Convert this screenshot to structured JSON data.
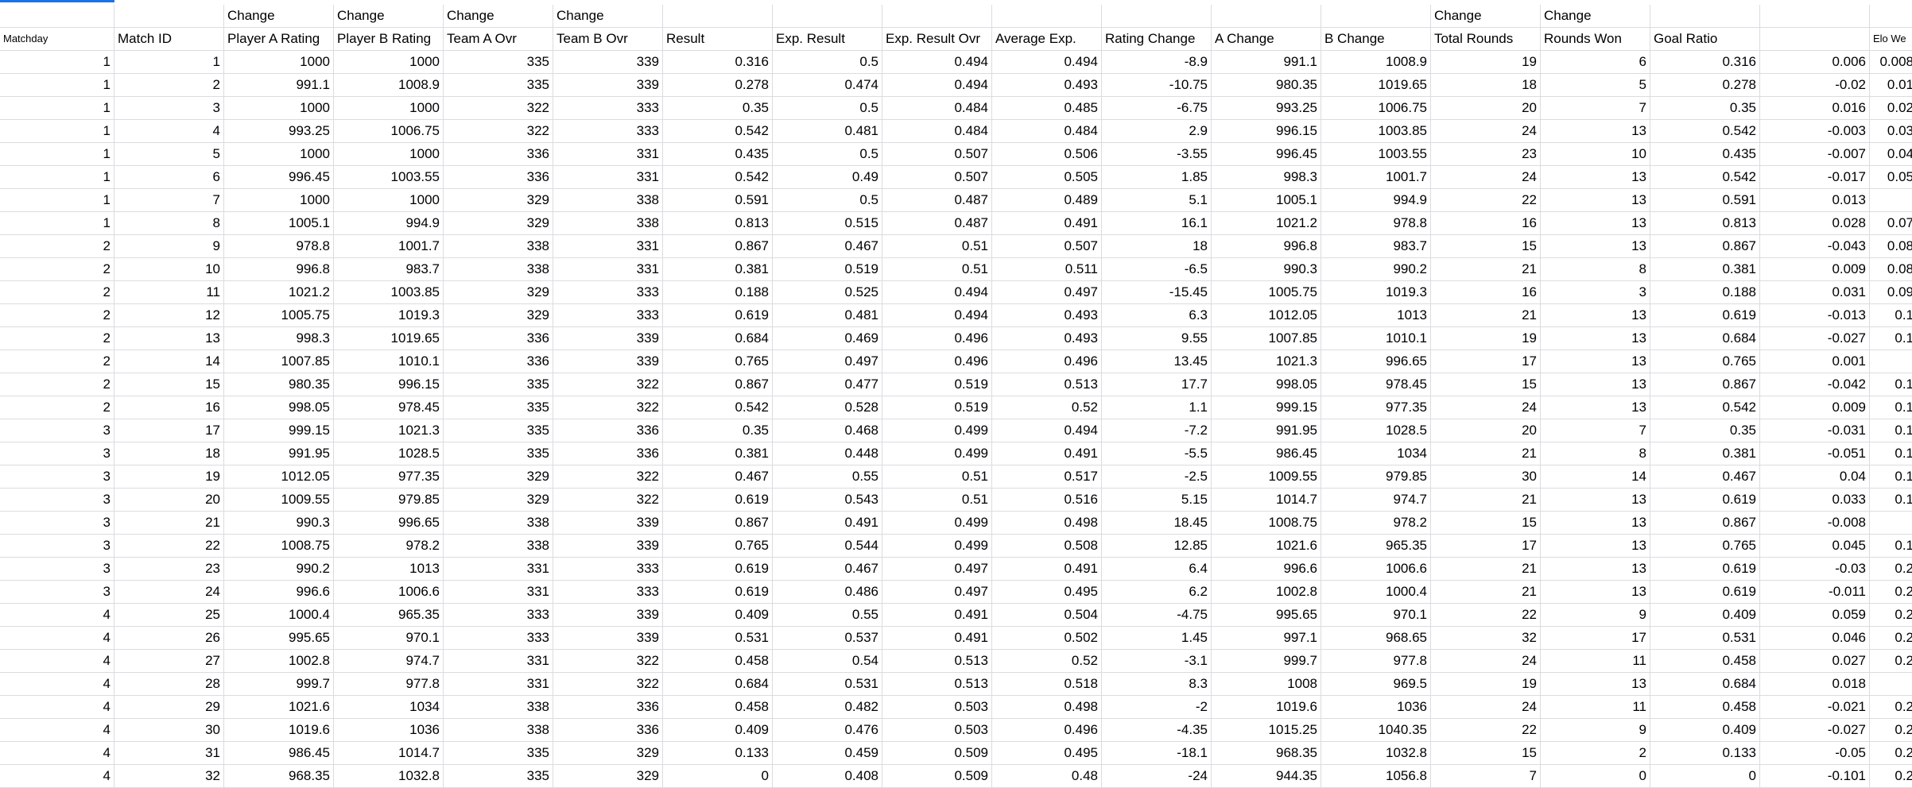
{
  "sheet": {
    "header_row1": [
      "",
      "",
      "Change",
      "Change",
      "Change",
      "Change",
      "",
      "",
      "",
      "",
      "",
      "",
      "",
      "Change",
      "Change",
      "",
      "",
      ""
    ],
    "header_row2": [
      "Matchday",
      "Match ID",
      "Player A Rating",
      "Player B Rating",
      "Team A Ovr",
      "Team B Ovr",
      "Result",
      "Exp. Result",
      "Exp. Result Ovr",
      "Average Exp.",
      "Rating Change",
      "A Change",
      "B Change",
      "Total Rounds",
      "Rounds Won",
      "Goal Ratio",
      "",
      "Elo We"
    ],
    "rows": [
      [
        "1",
        "1",
        "1000",
        "1000",
        "335",
        "339",
        "0.316",
        "0.5",
        "0.494",
        "0.494",
        "-8.9",
        "991.1",
        "1008.9",
        "19",
        "6",
        "0.316",
        "0.006",
        "0.008"
      ],
      [
        "1",
        "2",
        "991.1",
        "1008.9",
        "335",
        "339",
        "0.278",
        "0.474",
        "0.494",
        "0.493",
        "-10.75",
        "980.35",
        "1019.65",
        "18",
        "5",
        "0.278",
        "-0.02",
        "0.01"
      ],
      [
        "1",
        "3",
        "1000",
        "1000",
        "322",
        "333",
        "0.35",
        "0.5",
        "0.484",
        "0.485",
        "-6.75",
        "993.25",
        "1006.75",
        "20",
        "7",
        "0.35",
        "0.016",
        "0.02"
      ],
      [
        "1",
        "4",
        "993.25",
        "1006.75",
        "322",
        "333",
        "0.542",
        "0.481",
        "0.484",
        "0.484",
        "2.9",
        "996.15",
        "1003.85",
        "24",
        "13",
        "0.542",
        "-0.003",
        "0.03"
      ],
      [
        "1",
        "5",
        "1000",
        "1000",
        "336",
        "331",
        "0.435",
        "0.5",
        "0.507",
        "0.506",
        "-3.55",
        "996.45",
        "1003.55",
        "23",
        "10",
        "0.435",
        "-0.007",
        "0.04"
      ],
      [
        "1",
        "6",
        "996.45",
        "1003.55",
        "336",
        "331",
        "0.542",
        "0.49",
        "0.507",
        "0.505",
        "1.85",
        "998.3",
        "1001.7",
        "24",
        "13",
        "0.542",
        "-0.017",
        "0.05"
      ],
      [
        "1",
        "7",
        "1000",
        "1000",
        "329",
        "338",
        "0.591",
        "0.5",
        "0.487",
        "0.489",
        "5.1",
        "1005.1",
        "994.9",
        "22",
        "13",
        "0.591",
        "0.013",
        ""
      ],
      [
        "1",
        "8",
        "1005.1",
        "994.9",
        "329",
        "338",
        "0.813",
        "0.515",
        "0.487",
        "0.491",
        "16.1",
        "1021.2",
        "978.8",
        "16",
        "13",
        "0.813",
        "0.028",
        "0.07"
      ],
      [
        "2",
        "9",
        "978.8",
        "1001.7",
        "338",
        "331",
        "0.867",
        "0.467",
        "0.51",
        "0.507",
        "18",
        "996.8",
        "983.7",
        "15",
        "13",
        "0.867",
        "-0.043",
        "0.08"
      ],
      [
        "2",
        "10",
        "996.8",
        "983.7",
        "338",
        "331",
        "0.381",
        "0.519",
        "0.51",
        "0.511",
        "-6.5",
        "990.3",
        "990.2",
        "21",
        "8",
        "0.381",
        "0.009",
        "0.08"
      ],
      [
        "2",
        "11",
        "1021.2",
        "1003.85",
        "329",
        "333",
        "0.188",
        "0.525",
        "0.494",
        "0.497",
        "-15.45",
        "1005.75",
        "1019.3",
        "16",
        "3",
        "0.188",
        "0.031",
        "0.09"
      ],
      [
        "2",
        "12",
        "1005.75",
        "1019.3",
        "329",
        "333",
        "0.619",
        "0.481",
        "0.494",
        "0.493",
        "6.3",
        "1012.05",
        "1013",
        "21",
        "13",
        "0.619",
        "-0.013",
        "0.1"
      ],
      [
        "2",
        "13",
        "998.3",
        "1019.65",
        "336",
        "339",
        "0.684",
        "0.469",
        "0.496",
        "0.493",
        "9.55",
        "1007.85",
        "1010.1",
        "19",
        "13",
        "0.684",
        "-0.027",
        "0.1"
      ],
      [
        "2",
        "14",
        "1007.85",
        "1010.1",
        "336",
        "339",
        "0.765",
        "0.497",
        "0.496",
        "0.496",
        "13.45",
        "1021.3",
        "996.65",
        "17",
        "13",
        "0.765",
        "0.001",
        ""
      ],
      [
        "2",
        "15",
        "980.35",
        "996.15",
        "335",
        "322",
        "0.867",
        "0.477",
        "0.519",
        "0.513",
        "17.7",
        "998.05",
        "978.45",
        "15",
        "13",
        "0.867",
        "-0.042",
        "0.1"
      ],
      [
        "2",
        "16",
        "998.05",
        "978.45",
        "335",
        "322",
        "0.542",
        "0.528",
        "0.519",
        "0.52",
        "1.1",
        "999.15",
        "977.35",
        "24",
        "13",
        "0.542",
        "0.009",
        "0.1"
      ],
      [
        "3",
        "17",
        "999.15",
        "1021.3",
        "335",
        "336",
        "0.35",
        "0.468",
        "0.499",
        "0.494",
        "-7.2",
        "991.95",
        "1028.5",
        "20",
        "7",
        "0.35",
        "-0.031",
        "0.1"
      ],
      [
        "3",
        "18",
        "991.95",
        "1028.5",
        "335",
        "336",
        "0.381",
        "0.448",
        "0.499",
        "0.491",
        "-5.5",
        "986.45",
        "1034",
        "21",
        "8",
        "0.381",
        "-0.051",
        "0.1"
      ],
      [
        "3",
        "19",
        "1012.05",
        "977.35",
        "329",
        "322",
        "0.467",
        "0.55",
        "0.51",
        "0.517",
        "-2.5",
        "1009.55",
        "979.85",
        "30",
        "14",
        "0.467",
        "0.04",
        "0.1"
      ],
      [
        "3",
        "20",
        "1009.55",
        "979.85",
        "329",
        "322",
        "0.619",
        "0.543",
        "0.51",
        "0.516",
        "5.15",
        "1014.7",
        "974.7",
        "21",
        "13",
        "0.619",
        "0.033",
        "0.1"
      ],
      [
        "3",
        "21",
        "990.3",
        "996.65",
        "338",
        "339",
        "0.867",
        "0.491",
        "0.499",
        "0.498",
        "18.45",
        "1008.75",
        "978.2",
        "15",
        "13",
        "0.867",
        "-0.008",
        ""
      ],
      [
        "3",
        "22",
        "1008.75",
        "978.2",
        "338",
        "339",
        "0.765",
        "0.544",
        "0.499",
        "0.508",
        "12.85",
        "1021.6",
        "965.35",
        "17",
        "13",
        "0.765",
        "0.045",
        "0.1"
      ],
      [
        "3",
        "23",
        "990.2",
        "1013",
        "331",
        "333",
        "0.619",
        "0.467",
        "0.497",
        "0.491",
        "6.4",
        "996.6",
        "1006.6",
        "21",
        "13",
        "0.619",
        "-0.03",
        "0.2"
      ],
      [
        "3",
        "24",
        "996.6",
        "1006.6",
        "331",
        "333",
        "0.619",
        "0.486",
        "0.497",
        "0.495",
        "6.2",
        "1002.8",
        "1000.4",
        "21",
        "13",
        "0.619",
        "-0.011",
        "0.2"
      ],
      [
        "4",
        "25",
        "1000.4",
        "965.35",
        "333",
        "339",
        "0.409",
        "0.55",
        "0.491",
        "0.504",
        "-4.75",
        "995.65",
        "970.1",
        "22",
        "9",
        "0.409",
        "0.059",
        "0.2"
      ],
      [
        "4",
        "26",
        "995.65",
        "970.1",
        "333",
        "339",
        "0.531",
        "0.537",
        "0.491",
        "0.502",
        "1.45",
        "997.1",
        "968.65",
        "32",
        "17",
        "0.531",
        "0.046",
        "0.2"
      ],
      [
        "4",
        "27",
        "1002.8",
        "974.7",
        "331",
        "322",
        "0.458",
        "0.54",
        "0.513",
        "0.52",
        "-3.1",
        "999.7",
        "977.8",
        "24",
        "11",
        "0.458",
        "0.027",
        "0.2"
      ],
      [
        "4",
        "28",
        "999.7",
        "977.8",
        "331",
        "322",
        "0.684",
        "0.531",
        "0.513",
        "0.518",
        "8.3",
        "1008",
        "969.5",
        "19",
        "13",
        "0.684",
        "0.018",
        ""
      ],
      [
        "4",
        "29",
        "1021.6",
        "1034",
        "338",
        "336",
        "0.458",
        "0.482",
        "0.503",
        "0.498",
        "-2",
        "1019.6",
        "1036",
        "24",
        "11",
        "0.458",
        "-0.021",
        "0.2"
      ],
      [
        "4",
        "30",
        "1019.6",
        "1036",
        "338",
        "336",
        "0.409",
        "0.476",
        "0.503",
        "0.496",
        "-4.35",
        "1015.25",
        "1040.35",
        "22",
        "9",
        "0.409",
        "-0.027",
        "0.2"
      ],
      [
        "4",
        "31",
        "986.45",
        "1014.7",
        "335",
        "329",
        "0.133",
        "0.459",
        "0.509",
        "0.495",
        "-18.1",
        "968.35",
        "1032.8",
        "15",
        "2",
        "0.133",
        "-0.05",
        "0.2"
      ],
      [
        "4",
        "32",
        "968.35",
        "1032.8",
        "335",
        "329",
        "0",
        "0.408",
        "0.509",
        "0.48",
        "-24",
        "944.35",
        "1056.8",
        "7",
        "0",
        "0",
        "-0.101",
        "0.2"
      ]
    ]
  }
}
